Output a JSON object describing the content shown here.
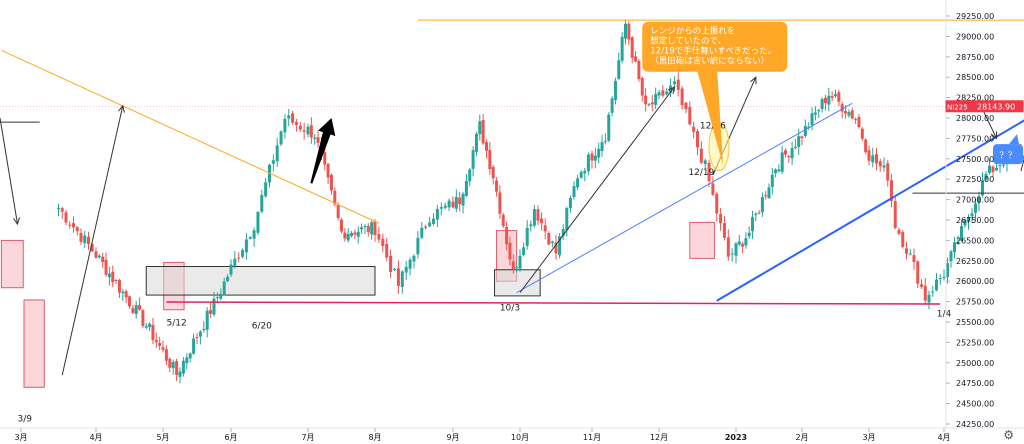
{
  "chart_data": {
    "type": "candlestick",
    "symbol_label": "NI225",
    "last_price": "28143.90",
    "colors": {
      "up": "#26a69a",
      "down": "#ef5350",
      "last_price_bg": "#f23645",
      "trend_orange": "#ffa726",
      "trend_blue_thin": "#4d7cff",
      "trend_blue_thick": "#2962ff",
      "support_red": "#e0245e",
      "box_pink": "#f7b6be",
      "box_gray": "#d9d9d9",
      "note_bg": "#ffa726",
      "question_bg": "#4a8cff"
    },
    "y_axis": {
      "min": 24250,
      "max": 29250,
      "ticks": [
        "29250.00",
        "29000.00",
        "28750.00",
        "28500.00",
        "28250.00",
        "28000.00",
        "27750.00",
        "27500.00",
        "27250.00",
        "27000.00",
        "26750.00",
        "26500.00",
        "26250.00",
        "26000.00",
        "25750.00",
        "25500.00",
        "25250.00",
        "25000.00",
        "24750.00",
        "24500.00",
        "24250.00"
      ]
    },
    "x_axis": {
      "ticks": [
        "3月",
        "4月",
        "5月",
        "6月",
        "7月",
        "8月",
        "9月",
        "10月",
        "11月",
        "12月",
        "2023",
        "2月",
        "3月",
        "4月"
      ]
    },
    "anchors": [
      {
        "x": 0.5,
        "close": 26900
      },
      {
        "x": 1.8,
        "close": 25400
      },
      {
        "x": 2.2,
        "close": 24860
      },
      {
        "x": 2.8,
        "close": 25800
      },
      {
        "x": 3.3,
        "close": 26700
      },
      {
        "x": 3.7,
        "close": 28000
      },
      {
        "x": 4.1,
        "close": 27800
      },
      {
        "x": 4.5,
        "close": 26600
      },
      {
        "x": 5.0,
        "close": 26650
      },
      {
        "x": 5.3,
        "close": 25950
      },
      {
        "x": 5.7,
        "close": 26800
      },
      {
        "x": 6.1,
        "close": 27000
      },
      {
        "x": 6.4,
        "close": 27900
      },
      {
        "x": 6.6,
        "close": 27300
      },
      {
        "x": 6.9,
        "close": 26100
      },
      {
        "x": 7.2,
        "close": 26900
      },
      {
        "x": 7.5,
        "close": 26350
      },
      {
        "x": 7.8,
        "close": 27300
      },
      {
        "x": 8.2,
        "close": 27800
      },
      {
        "x": 8.5,
        "close": 29150
      },
      {
        "x": 8.8,
        "close": 28100
      },
      {
        "x": 9.2,
        "close": 28400
      },
      {
        "x": 9.6,
        "close": 27400
      },
      {
        "x": 9.9,
        "close": 26300
      },
      {
        "x": 10.2,
        "close": 26600
      },
      {
        "x": 10.6,
        "close": 27400
      },
      {
        "x": 11.0,
        "close": 27800
      },
      {
        "x": 11.4,
        "close": 28300
      },
      {
        "x": 11.8,
        "close": 28000
      },
      {
        "x": 12.0,
        "close": 27550
      },
      {
        "x": 12.25,
        "close": 27300
      },
      {
        "x": 12.35,
        "close": 26700
      },
      {
        "x": 12.55,
        "close": 26300
      },
      {
        "x": 12.75,
        "close": 25800
      },
      {
        "x": 13.0,
        "close": 26100
      },
      {
        "x": 13.3,
        "close": 26700
      },
      {
        "x": 13.6,
        "close": 27300
      },
      {
        "x": 14.0,
        "close": 27600
      },
      {
        "x": 14.4,
        "close": 27400
      },
      {
        "x": 14.6,
        "close": 27100
      },
      {
        "x": 14.9,
        "close": 27900
      },
      {
        "x": 15.0,
        "close": 28600
      },
      {
        "x": 15.2,
        "close": 28143.9
      }
    ],
    "annotations": [
      {
        "label": "3/9"
      },
      {
        "label": "5/12"
      },
      {
        "label": "6/20"
      },
      {
        "label": "10/3"
      },
      {
        "label": "12/16"
      },
      {
        "label": "12/19"
      },
      {
        "label": "1/4"
      }
    ],
    "note": {
      "lines": [
        "レンジからの上振れを",
        "想定していたので、",
        "12/19で手仕舞いすべきだった。",
        "（黒田砲は言い訳にならない）"
      ]
    },
    "question_box": "？？"
  }
}
